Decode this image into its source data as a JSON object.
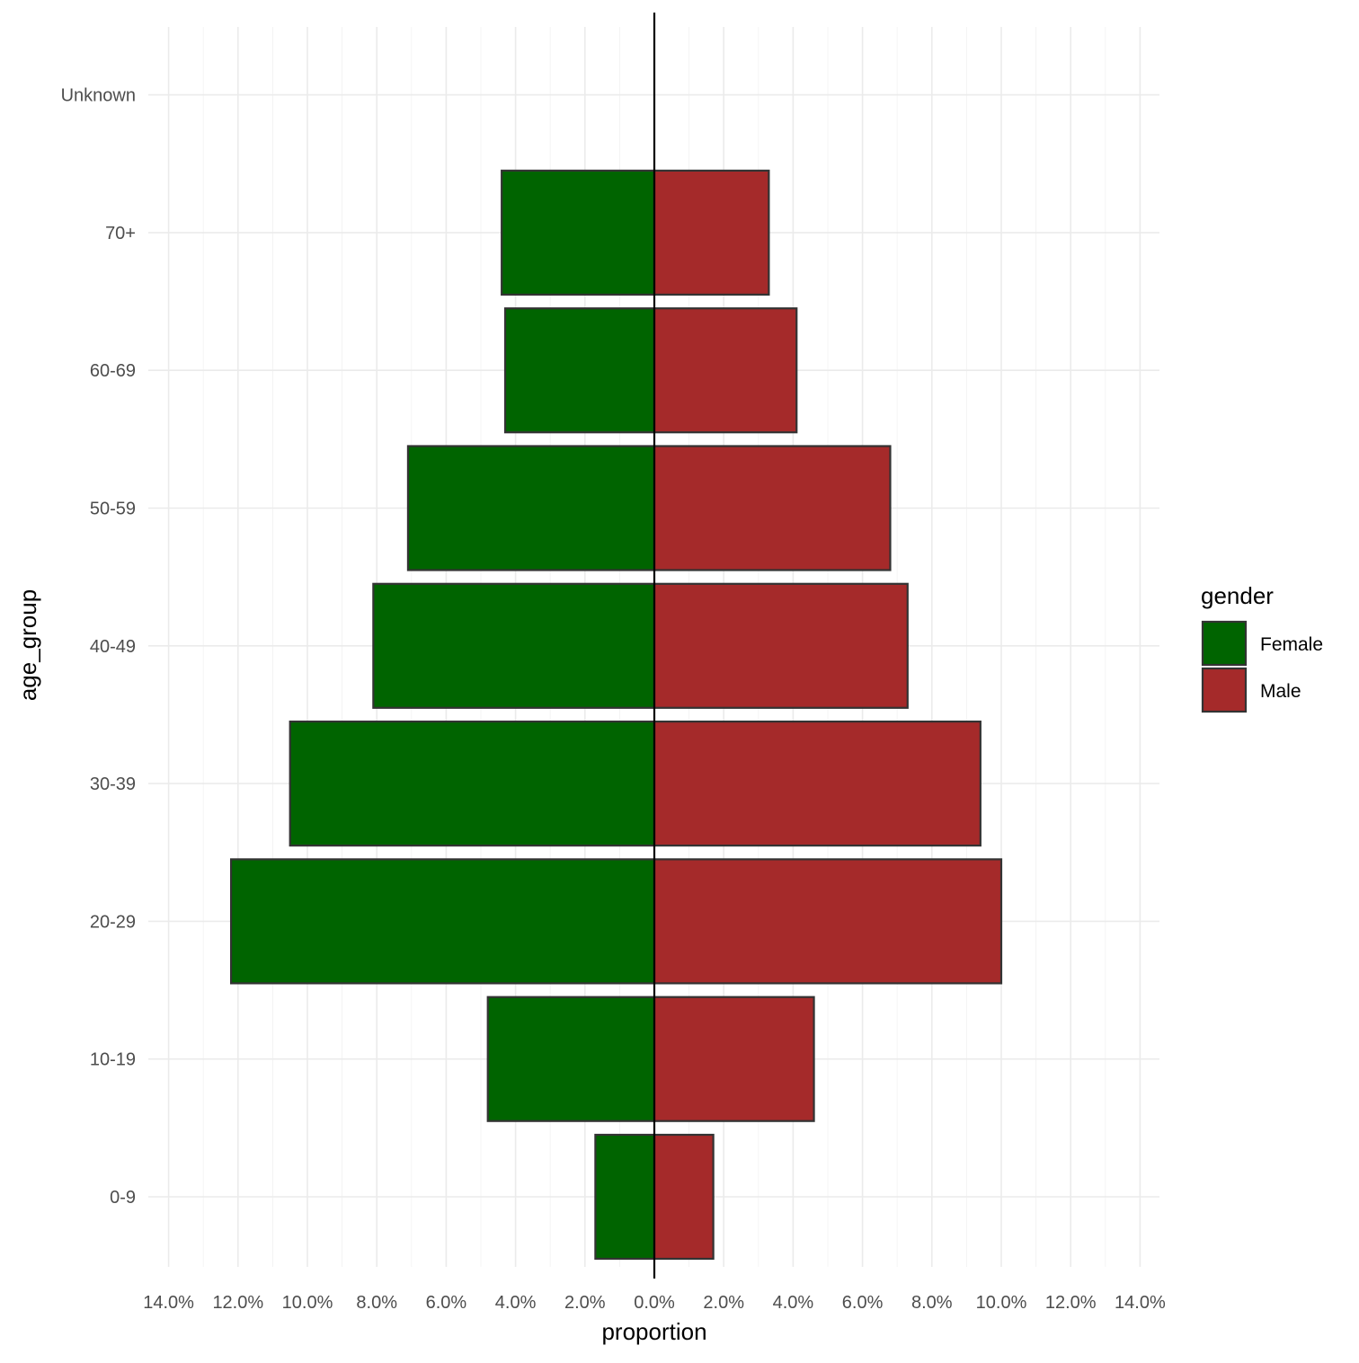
{
  "chart_data": {
    "type": "bar",
    "orientation": "horizontal",
    "layout": "population-pyramid",
    "categories": [
      "0-9",
      "10-19",
      "20-29",
      "30-39",
      "40-49",
      "50-59",
      "60-69",
      "70+",
      "Unknown"
    ],
    "series": [
      {
        "name": "Female",
        "color": "#006400",
        "values": [
          1.7,
          4.8,
          12.2,
          10.5,
          8.1,
          7.1,
          4.3,
          4.4,
          0.0
        ]
      },
      {
        "name": "Male",
        "color": "#a52a2a",
        "values": [
          1.7,
          4.6,
          10.0,
          9.4,
          7.3,
          6.8,
          4.1,
          3.3,
          0.0
        ]
      }
    ],
    "xlabel": "proportion",
    "ylabel": "age_group",
    "xlim": [
      -14,
      14
    ],
    "x_ticks": [
      -14,
      -12,
      -10,
      -8,
      -6,
      -4,
      -2,
      0,
      2,
      4,
      6,
      8,
      10,
      12,
      14
    ],
    "x_tick_labels": [
      "14.0%",
      "12.0%",
      "10.0%",
      "8.0%",
      "6.0%",
      "4.0%",
      "2.0%",
      "0.0%",
      "2.0%",
      "4.0%",
      "6.0%",
      "8.0%",
      "10.0%",
      "12.0%",
      "14.0%"
    ],
    "legend": {
      "title": "gender",
      "position": "right",
      "items": [
        "Female",
        "Male"
      ]
    },
    "grid": true,
    "zero_line": true
  }
}
